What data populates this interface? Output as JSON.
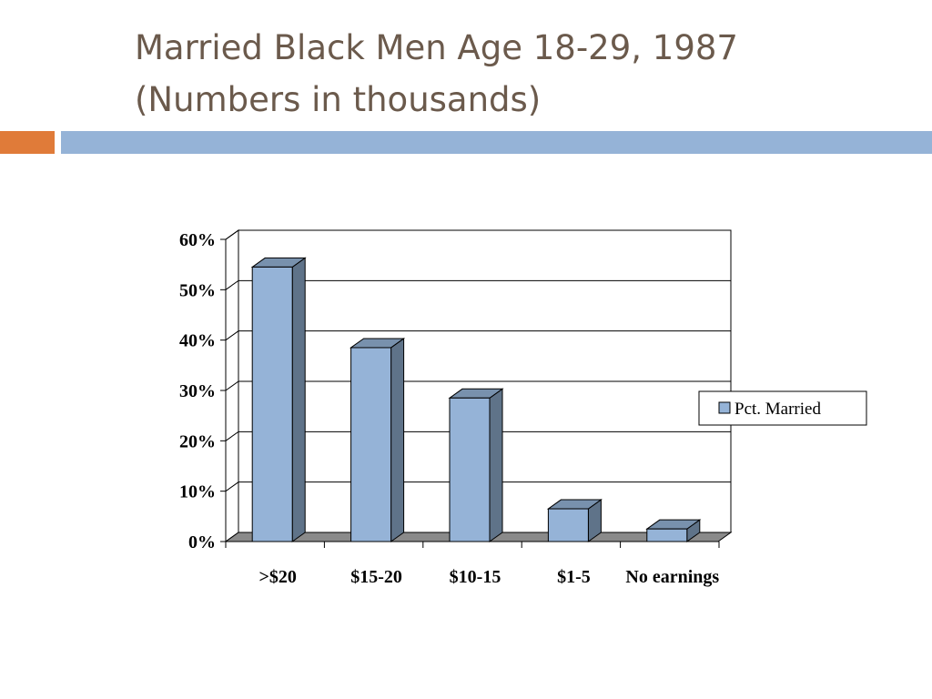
{
  "slide": {
    "title_line1": "Married Black Men Age 18-29, 1987",
    "title_line2": "(Numbers in thousands)"
  },
  "colors": {
    "title": "#6b5a4c",
    "accent_orange": "#e07b39",
    "accent_blue": "#95b3d7",
    "bar_front": "#95b3d7",
    "bar_side": "#5f7389",
    "bar_top": "#7891ad",
    "floor": "#8a8a8a"
  },
  "chart_data": {
    "type": "bar",
    "title": "",
    "xlabel": "",
    "ylabel": "",
    "categories": [
      ">$20",
      "$15-20",
      "$10-15",
      "$1-5",
      "No earnings"
    ],
    "series": [
      {
        "name": "Pct. Married",
        "values": [
          0.545,
          0.385,
          0.285,
          0.065,
          0.025
        ]
      }
    ],
    "ylim": [
      0,
      0.6
    ],
    "yticks": [
      "0%",
      "10%",
      "20%",
      "30%",
      "40%",
      "50%",
      "60%"
    ],
    "grid": true,
    "legend": "right",
    "style": "3d-column"
  }
}
